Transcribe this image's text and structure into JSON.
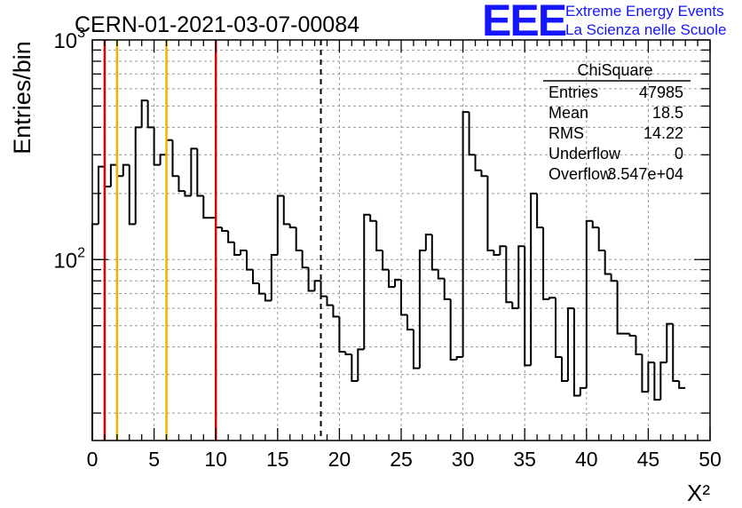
{
  "run_title": "CERN-01-2021-03-07-00084",
  "logo": {
    "mark": "EEE",
    "line1": "Extreme Energy Events",
    "line2": "La Scienza nelle Scuole",
    "color": "#1515ff"
  },
  "stats": {
    "title": "ChiSquare",
    "rows": [
      {
        "label": "Entries",
        "value": "47985"
      },
      {
        "label": "Mean",
        "value": "18.5"
      },
      {
        "label": "RMS",
        "value": "14.22"
      },
      {
        "label": "Underflow",
        "value": "0"
      },
      {
        "label": "Overflow",
        "value": "3.547e+04"
      }
    ]
  },
  "chart_data": {
    "type": "histogram",
    "title": "CERN-01-2021-03-07-00084",
    "xlabel": "X²",
    "ylabel": "Entries/bin",
    "xlim": [
      0,
      50
    ],
    "ylim": [
      15,
      1000
    ],
    "log_y": true,
    "grid": true,
    "bin_width": 0.5,
    "x_ticks": [
      0,
      5,
      10,
      15,
      20,
      25,
      30,
      35,
      40,
      45,
      50
    ],
    "y_ticks": [
      {
        "value": 100,
        "base": "10",
        "exp": "2"
      },
      {
        "value": 1000,
        "base": "10",
        "exp": "3"
      }
    ],
    "values": [
      145,
      265,
      215,
      270,
      240,
      270,
      145,
      400,
      530,
      400,
      270,
      300,
      350,
      240,
      205,
      195,
      320,
      195,
      155,
      155,
      140,
      135,
      120,
      105,
      110,
      90,
      78,
      70,
      65,
      105,
      195,
      145,
      140,
      110,
      92,
      72,
      80,
      68,
      62,
      55,
      38,
      37,
      28,
      39,
      160,
      150,
      110,
      90,
      75,
      81,
      56,
      48,
      32,
      110,
      130,
      90,
      82,
      66,
      35,
      36,
      470,
      300,
      255,
      240,
      110,
      105,
      115,
      64,
      60,
      115,
      33,
      200,
      140,
      66,
      67,
      36,
      28,
      60,
      24,
      26,
      150,
      140,
      110,
      86,
      80,
      46,
      46,
      45,
      37,
      25,
      34,
      23,
      34,
      51,
      28,
      26
    ],
    "vertical_lines": [
      {
        "x": 1,
        "color": "#e00000",
        "style": "solid"
      },
      {
        "x": 2,
        "color": "#f0b400",
        "style": "solid"
      },
      {
        "x": 6,
        "color": "#f0b400",
        "style": "solid"
      },
      {
        "x": 10,
        "color": "#e00000",
        "style": "solid"
      },
      {
        "x": 18.5,
        "color": "#000000",
        "style": "dashed"
      }
    ]
  }
}
